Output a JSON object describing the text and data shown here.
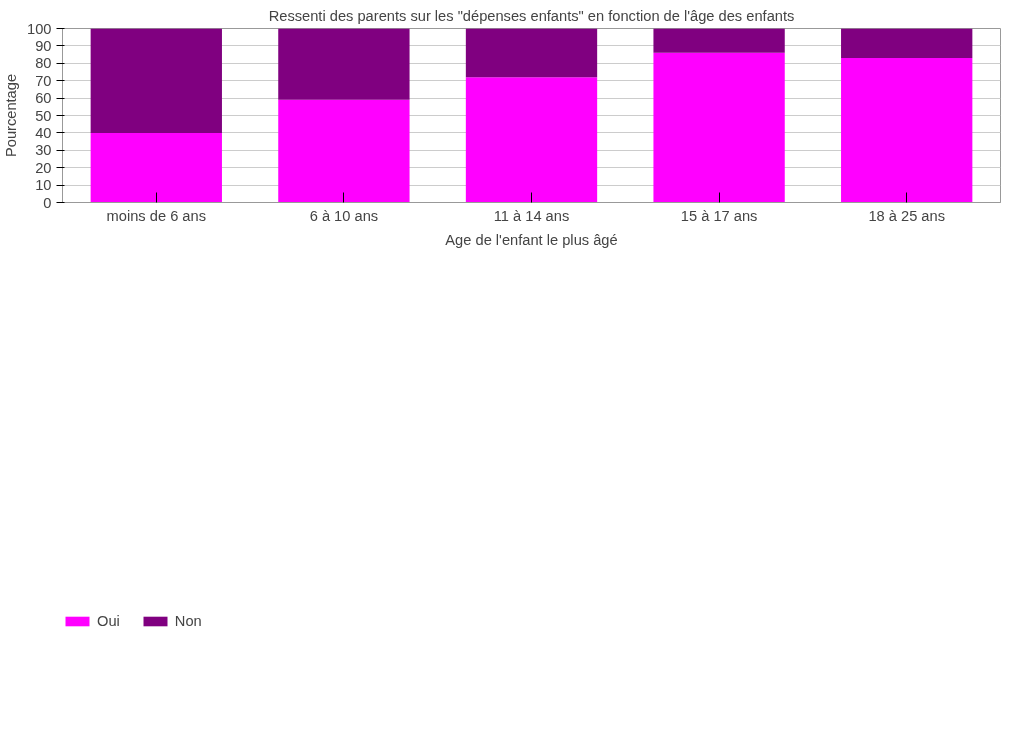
{
  "chart_data": {
    "type": "bar",
    "stacked": true,
    "title": "Ressenti des parents sur les \"dépenses enfants\" en fonction de l'âge des enfants",
    "xlabel": "Age de l'enfant le plus âgé",
    "ylabel": "Pourcentage",
    "categories": [
      "moins de 6 ans",
      "6 à 10 ans",
      "11 à 14 ans",
      "15 à 17 ans",
      "18 à 25 ans"
    ],
    "series": [
      {
        "name": "Oui",
        "color": "#ff00ff",
        "values": [
          40,
          59,
          72,
          86,
          83
        ]
      },
      {
        "name": "Non",
        "color": "#800080",
        "values": [
          60,
          41,
          28,
          14,
          17
        ]
      }
    ],
    "ylim": [
      0,
      100
    ],
    "yticks": [
      0,
      10,
      20,
      30,
      40,
      50,
      60,
      70,
      80,
      90,
      100
    ],
    "grid": "y",
    "legend": "bottom left"
  }
}
